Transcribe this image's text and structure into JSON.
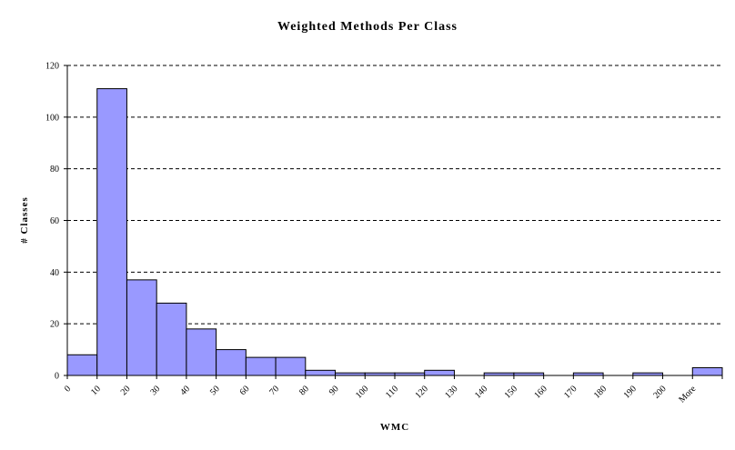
{
  "chart_data": {
    "type": "bar",
    "title": "Weighted Methods Per Class",
    "xlabel": "WMC",
    "ylabel": "# Classes",
    "categories": [
      "0",
      "10",
      "20",
      "30",
      "40",
      "50",
      "60",
      "70",
      "80",
      "90",
      "100",
      "110",
      "120",
      "130",
      "140",
      "150",
      "160",
      "170",
      "180",
      "190",
      "200",
      "More"
    ],
    "values": [
      8,
      111,
      37,
      28,
      18,
      10,
      7,
      7,
      2,
      1,
      1,
      1,
      2,
      0,
      1,
      1,
      0,
      1,
      0,
      1,
      0,
      3
    ],
    "ylim": [
      0,
      120
    ],
    "yticks": [
      0,
      20,
      40,
      60,
      80,
      100,
      120
    ],
    "grid": "horizontal dashed",
    "legend": "none",
    "colors": {
      "bar_fill": "#9999ff",
      "bar_stroke": "#000000",
      "grid": "#000000"
    }
  }
}
